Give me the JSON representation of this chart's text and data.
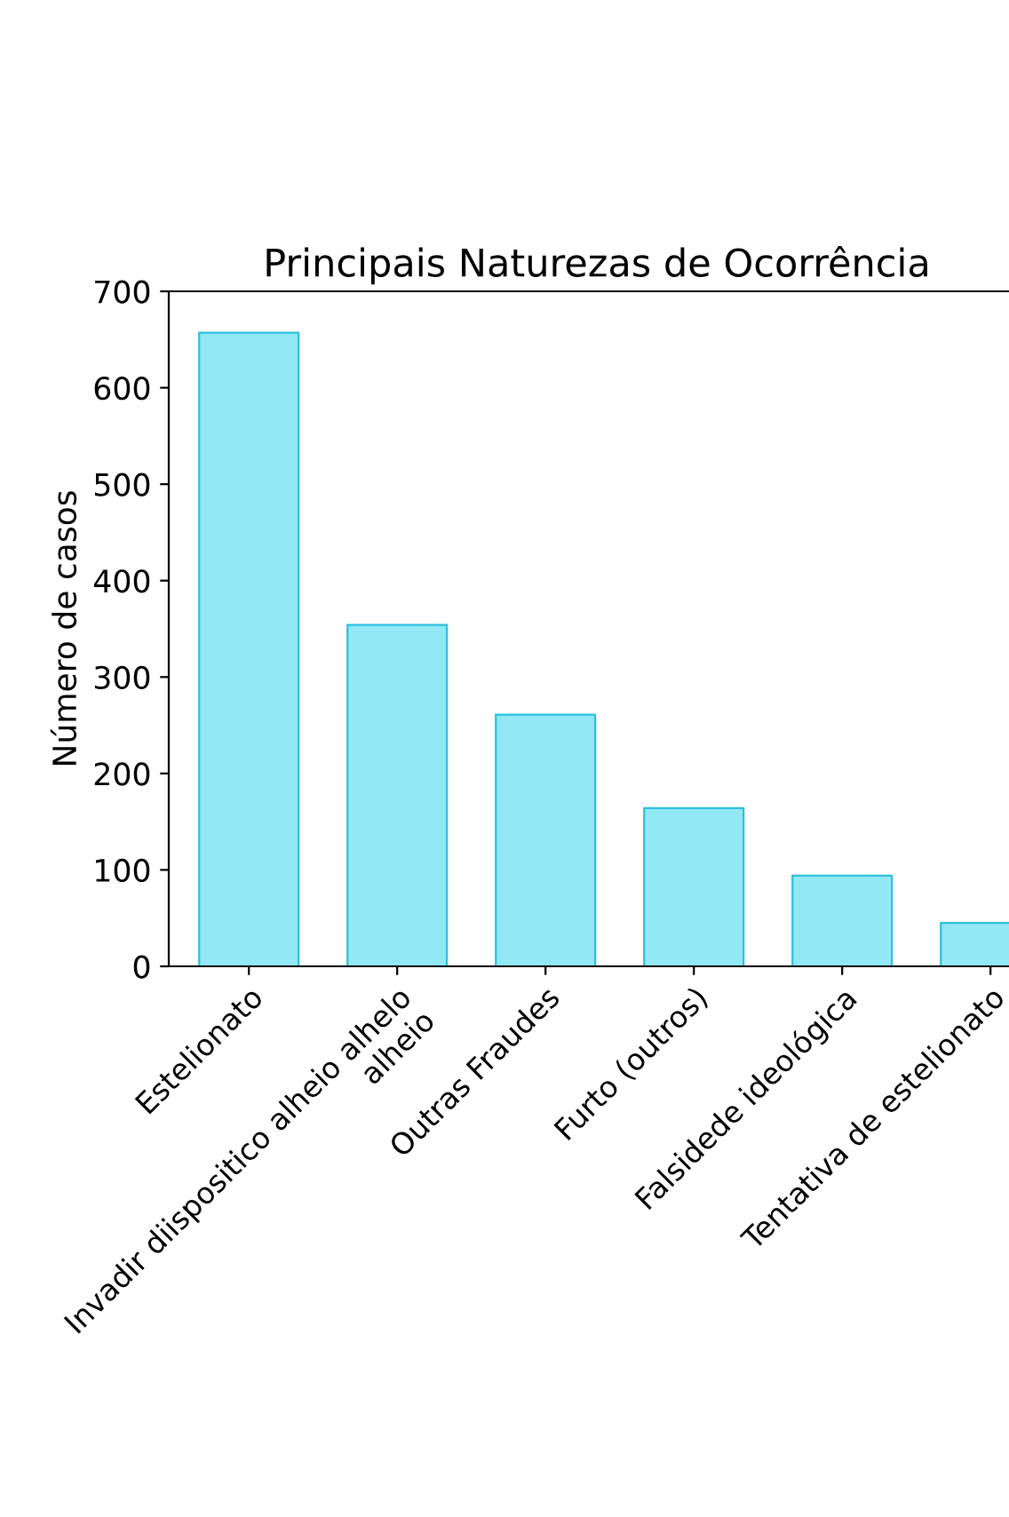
{
  "chart_data": {
    "type": "bar",
    "title": "Principais Naturezas de Ocorrência",
    "ylabel": "Número de casos",
    "categories": [
      "Estelionato",
      "Invadir diispositico alheio alhelo\nalheio",
      "Outras Fraudes",
      "Furto (outros)",
      "Falsidede ideológica",
      "Tentativa de estelionato"
    ],
    "values": [
      657,
      354,
      261,
      164,
      94,
      45
    ],
    "color": "#92e8f4",
    "ylim": [
      0,
      700
    ],
    "yticks": [
      0,
      100,
      200,
      300,
      400,
      500,
      600,
      700
    ],
    "grid": false
  }
}
